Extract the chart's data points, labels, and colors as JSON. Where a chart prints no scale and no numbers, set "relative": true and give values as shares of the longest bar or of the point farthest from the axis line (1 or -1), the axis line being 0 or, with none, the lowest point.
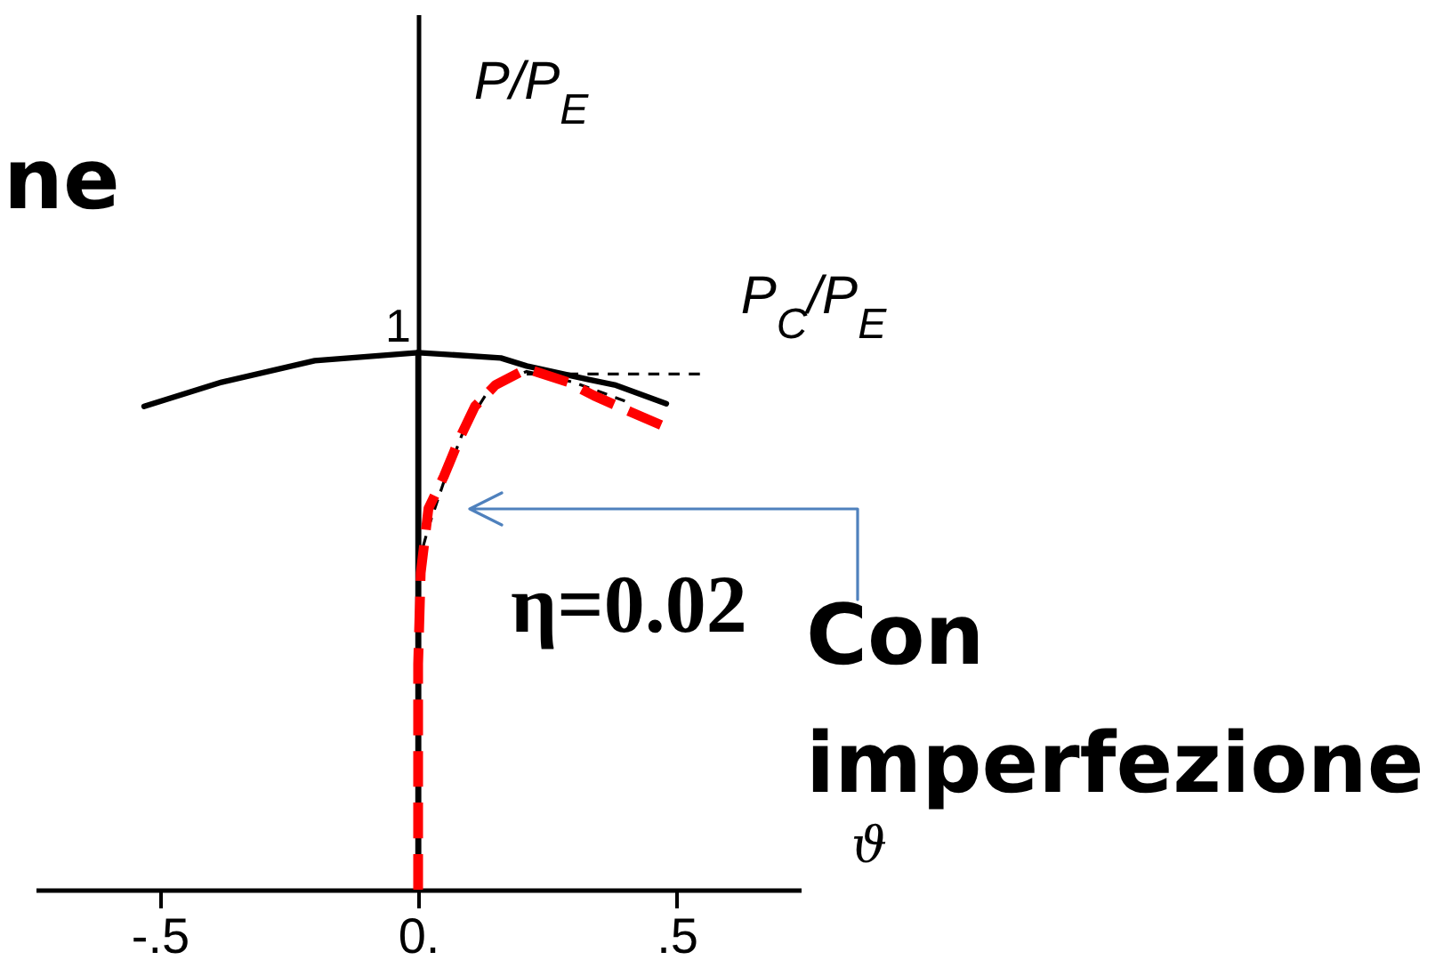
{
  "chart_data": {
    "type": "line",
    "relative": true,
    "xlabel": "ϑ",
    "ylabel": "P/P$_{E}$",
    "xlim": [
      -0.74,
      0.74
    ],
    "xticks": [
      {
        "value": -0.5,
        "label": "-.5"
      },
      {
        "value": 0,
        "label": "0."
      },
      {
        "value": 0.5,
        "label": ".5"
      }
    ],
    "series": [
      {
        "color": "#000000",
        "line_style": "solid",
        "x": [
          0,
          0
        ],
        "values": [
          0,
          1
        ]
      },
      {
        "color": "#000000",
        "line_style": "solid",
        "x": [
          -0.53,
          -0.38,
          -0.2,
          0,
          0.16,
          0.21,
          0.33,
          0.38,
          0.48
        ],
        "values": [
          0.9,
          0.945,
          0.985,
          1,
          0.99,
          0.975,
          0.95,
          0.94,
          0.905
        ]
      },
      {
        "color": "#000000",
        "line_style": "dashed",
        "x": [
          0.01,
          0.02,
          0.05,
          0.09,
          0.14,
          0.21,
          0.3,
          0.4
        ],
        "values": [
          0.64,
          0.675,
          0.76,
          0.86,
          0.935,
          0.965,
          0.945,
          0.91
        ]
      },
      {
        "name": "P$_{C}$/P$_{E}$",
        "color": "#000000",
        "line_style": "dashed",
        "x": [
          0.21,
          0.545
        ],
        "values": [
          0.96,
          0.96
        ]
      },
      {
        "color": "#ff0000",
        "line_style": "dashed",
        "x": [
          0,
          0,
          0,
          0.005,
          0.02,
          0.05,
          0.08,
          0.11,
          0.15,
          0.21,
          0.29,
          0.34,
          0.41,
          0.47
        ],
        "values": [
          0,
          0.25,
          0.42,
          0.59,
          0.71,
          0.77,
          0.84,
          0.9,
          0.94,
          0.97,
          0.945,
          0.92,
          0.89,
          0.865
        ]
      }
    ],
    "annotations": [
      "ne",
      "1",
      "η=0.02",
      "Con\nimperfezione"
    ]
  }
}
